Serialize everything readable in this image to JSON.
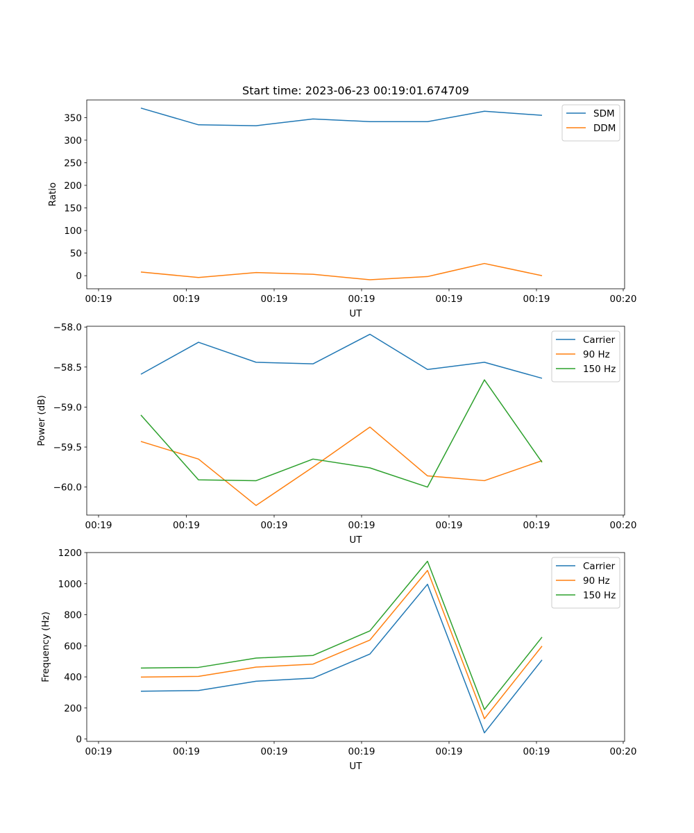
{
  "title": "Start time: 2023-06-23 00:19:01.674709",
  "chart_data": [
    {
      "type": "line",
      "xlabel": "UT",
      "ylabel": "Ratio",
      "xtick_labels": [
        "00:19",
        "00:19",
        "00:19",
        "00:19",
        "00:19",
        "00:19",
        "00:20"
      ],
      "ylim": [
        -29,
        389
      ],
      "yticks": [
        0,
        50,
        100,
        150,
        200,
        250,
        300,
        350
      ],
      "legend": "top-right",
      "series": [
        {
          "name": "SDM",
          "color": "#1f77b4",
          "values": [
            371,
            334,
            332,
            347,
            341,
            341,
            364,
            355
          ]
        },
        {
          "name": "DDM",
          "color": "#ff7f0e",
          "values": [
            8,
            -4,
            7,
            3,
            -9,
            -2,
            27,
            0
          ]
        }
      ]
    },
    {
      "type": "line",
      "xlabel": "UT",
      "ylabel": "Power (dB)",
      "xtick_labels": [
        "00:19",
        "00:19",
        "00:19",
        "00:19",
        "00:19",
        "00:19",
        "00:20"
      ],
      "ylim": [
        -60.35,
        -57.99
      ],
      "yticks": [
        -58.0,
        -58.5,
        -59.0,
        -59.5,
        -60.0
      ],
      "ytick_labels": [
        "−58.0",
        "−58.5",
        "−59.0",
        "−59.5",
        "−60.0"
      ],
      "legend": "top-right",
      "series": [
        {
          "name": "Carrier",
          "color": "#1f77b4",
          "values": [
            -58.59,
            -58.19,
            -58.44,
            -58.46,
            -58.09,
            -58.53,
            -58.44,
            -58.64
          ]
        },
        {
          "name": "90 Hz",
          "color": "#ff7f0e",
          "values": [
            -59.43,
            -59.65,
            -60.23,
            -59.75,
            -59.25,
            -59.86,
            -59.92,
            -59.67
          ]
        },
        {
          "name": "150 Hz",
          "color": "#2ca02c",
          "values": [
            -59.1,
            -59.91,
            -59.92,
            -59.65,
            -59.76,
            -60.0,
            -58.66,
            -59.69
          ]
        }
      ]
    },
    {
      "type": "line",
      "xlabel": "UT",
      "ylabel": "Frequency (Hz)",
      "xtick_labels": [
        "00:19",
        "00:19",
        "00:19",
        "00:19",
        "00:19",
        "00:19",
        "00:20"
      ],
      "ylim": [
        -15,
        1200
      ],
      "yticks": [
        0,
        200,
        400,
        600,
        800,
        1000,
        1200
      ],
      "legend": "top-right",
      "series": [
        {
          "name": "Carrier",
          "color": "#1f77b4",
          "values": [
            308,
            312,
            372,
            392,
            547,
            996,
            40,
            509
          ]
        },
        {
          "name": "90 Hz",
          "color": "#ff7f0e",
          "values": [
            399,
            403,
            463,
            482,
            637,
            1085,
            131,
            598
          ]
        },
        {
          "name": "150 Hz",
          "color": "#2ca02c",
          "values": [
            457,
            461,
            521,
            538,
            696,
            1144,
            190,
            656
          ]
        }
      ]
    }
  ]
}
